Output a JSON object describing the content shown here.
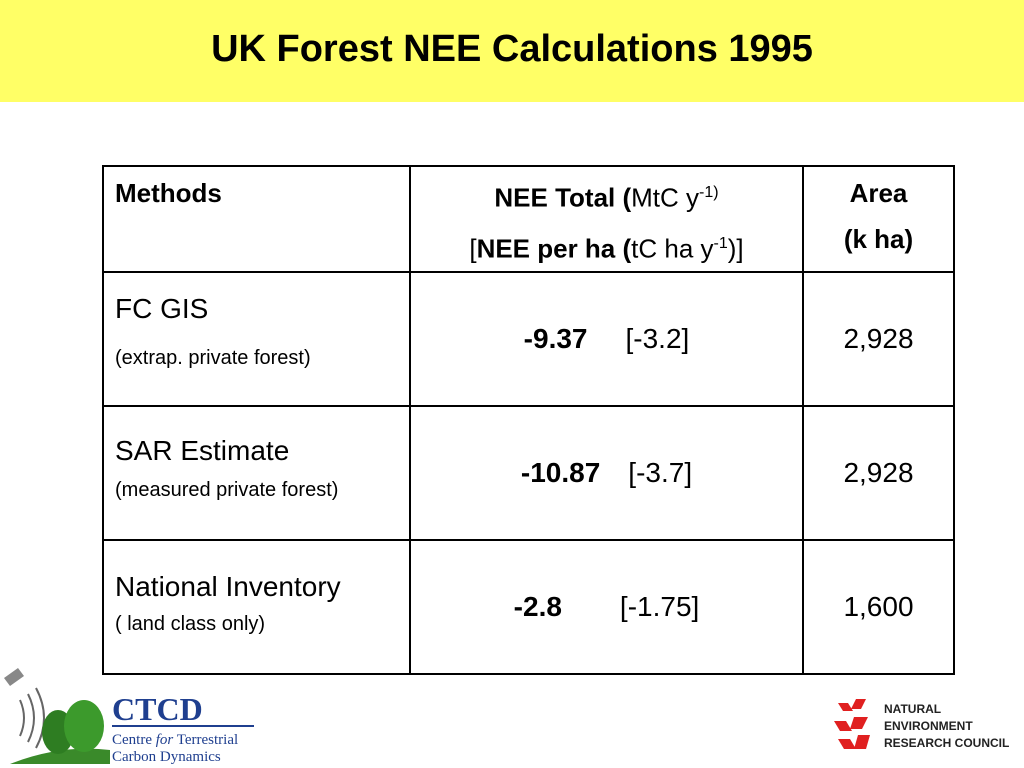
{
  "header": {
    "title": "UK Forest NEE Calculations 1995"
  },
  "table": {
    "header": {
      "methods": "Methods",
      "nee_line1": [
        "NEE Total  (",
        "MtC y",
        "-1)"
      ],
      "nee_line2": [
        "[",
        "NEE per ha (",
        "tC ha y",
        "-1",
        ")]"
      ],
      "area": [
        "Area",
        "(k ha)"
      ]
    },
    "rows": [
      {
        "method": "FC GIS",
        "note": "(extrap.  private forest)",
        "nee": "-9.37",
        "per_ha": "[-3.2]",
        "area": "2,928"
      },
      {
        "method": "SAR Estimate",
        "note": "(measured private forest)",
        "nee": "-10.87",
        "per_ha": "[-3.7]",
        "area": "2,928"
      },
      {
        "method": "National Inventory",
        "note": "( land class only)",
        "nee": "-2.8",
        "per_ha": "[-1.75]",
        "area": "1,600"
      }
    ]
  },
  "logos": {
    "ctcd": {
      "name": "CTCD",
      "line1": [
        "Centre ",
        "for",
        " Terrestrial"
      ],
      "line2": "Carbon Dynamics"
    },
    "nerc": [
      "NATURAL",
      "ENVIRONMENT",
      "RESEARCH COUNCIL"
    ]
  }
}
